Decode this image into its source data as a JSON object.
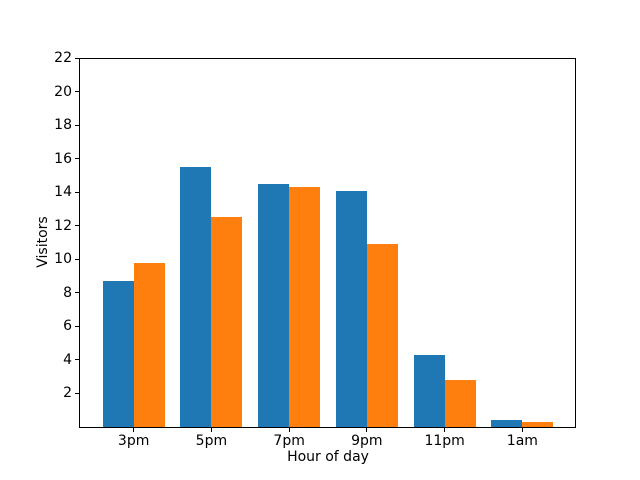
{
  "chart_data": {
    "type": "bar",
    "title": "",
    "xlabel": "Hour of day",
    "ylabel": "Visitors",
    "categories": [
      "3pm",
      "5pm",
      "7pm",
      "9pm",
      "11pm",
      "1am"
    ],
    "series": [
      {
        "name": "blue",
        "color": "#1f77b4",
        "values": [
          8.7,
          15.5,
          14.5,
          14.1,
          4.3,
          0.4
        ]
      },
      {
        "name": "orange",
        "color": "#ff7f0e",
        "values": [
          9.8,
          12.5,
          14.3,
          10.9,
          2.8,
          0.3
        ]
      }
    ],
    "ylim": [
      0,
      22
    ],
    "yticks": [
      2,
      4,
      6,
      8,
      10,
      12,
      14,
      16,
      18,
      20,
      22
    ],
    "grid": false,
    "legend": "none",
    "background": "#ffffff"
  }
}
